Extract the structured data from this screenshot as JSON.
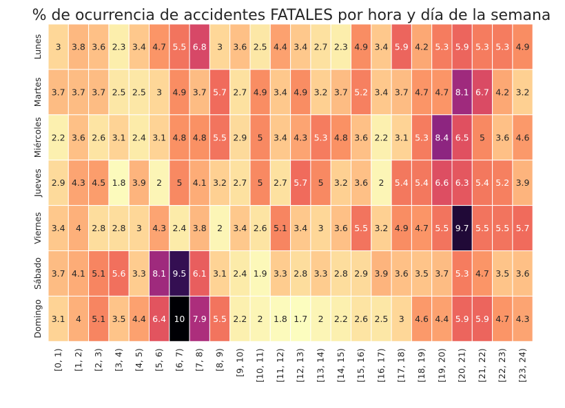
{
  "chart_data": {
    "type": "heatmap",
    "title": "% de ocurrencia de accidentes FATALES por hora y día de la semana",
    "rows": [
      "Lunes",
      "Martes",
      "Miércoles",
      "Jueves",
      "Viernes",
      "Sábado",
      "Domingo"
    ],
    "columns": [
      "[0, 1)",
      "[1, 2)",
      "[2, 3)",
      "[3, 4)",
      "[4, 5)",
      "[5, 6)",
      "[6, 7)",
      "[7, 8)",
      "[8, 9)",
      "[9, 10)",
      "[10, 11)",
      "[11, 12)",
      "[12, 13)",
      "[13, 14)",
      "[14, 15)",
      "[15, 16)",
      "[16, 17)",
      "[17, 18)",
      "[18, 19)",
      "[19, 20)",
      "[20, 21)",
      "[21, 22)",
      "[22, 23)",
      "[23, 24)"
    ],
    "values": [
      [
        "3",
        "3.8",
        "3.6",
        "2.3",
        "3.4",
        "4.7",
        "5.5",
        "6.8",
        "3",
        "3.6",
        "2.5",
        "4.4",
        "3.4",
        "2.7",
        "2.3",
        "4.9",
        "3.4",
        "5.9",
        "4.2",
        "5.3",
        "5.9",
        "5.3",
        "5.3",
        "4.9"
      ],
      [
        "3.7",
        "3.7",
        "3.7",
        "2.5",
        "2.5",
        "3",
        "4.9",
        "3.7",
        "5.7",
        "2.7",
        "4.9",
        "3.4",
        "4.9",
        "3.2",
        "3.7",
        "5.2",
        "3.4",
        "3.7",
        "4.7",
        "4.7",
        "8.1",
        "6.7",
        "4.2",
        "3.2"
      ],
      [
        "2.2",
        "3.6",
        "2.6",
        "3.1",
        "2.4",
        "3.1",
        "4.8",
        "4.8",
        "5.5",
        "2.9",
        "5",
        "3.4",
        "4.3",
        "5.3",
        "4.8",
        "3.6",
        "2.2",
        "3.1",
        "5.3",
        "8.4",
        "6.5",
        "5",
        "3.6",
        "4.6"
      ],
      [
        "2.9",
        "4.3",
        "4.5",
        "1.8",
        "3.9",
        "2",
        "5",
        "4.1",
        "3.2",
        "2.7",
        "5",
        "2.7",
        "5.7",
        "5",
        "3.2",
        "3.6",
        "2",
        "5.4",
        "5.4",
        "6.6",
        "6.3",
        "5.4",
        "5.2",
        "3.9"
      ],
      [
        "3.4",
        "4",
        "2.8",
        "2.8",
        "3",
        "4.3",
        "2.4",
        "3.8",
        "2",
        "3.4",
        "2.6",
        "5.1",
        "3.4",
        "3",
        "3.6",
        "5.5",
        "3.2",
        "4.9",
        "4.7",
        "5.5",
        "9.7",
        "5.5",
        "5.5",
        "5.7"
      ],
      [
        "3.7",
        "4.1",
        "5.1",
        "5.6",
        "3.3",
        "8.1",
        "9.5",
        "6.1",
        "3.1",
        "2.4",
        "1.9",
        "3.3",
        "2.8",
        "3.3",
        "2.8",
        "2.9",
        "3.9",
        "3.6",
        "3.5",
        "3.7",
        "5.3",
        "4.7",
        "3.5",
        "3.6"
      ],
      [
        "3.1",
        "4",
        "5.1",
        "3.5",
        "4.4",
        "6.4",
        "10",
        "7.9",
        "5.5",
        "2.2",
        "2",
        "1.8",
        "1.7",
        "2",
        "2.2",
        "2.6",
        "2.5",
        "3",
        "4.6",
        "4.4",
        "5.9",
        "5.9",
        "4.7",
        "4.3"
      ]
    ],
    "colormap": "magma_r",
    "vmin": 1.7,
    "vmax": 10,
    "colorbar": false,
    "grid": false
  }
}
